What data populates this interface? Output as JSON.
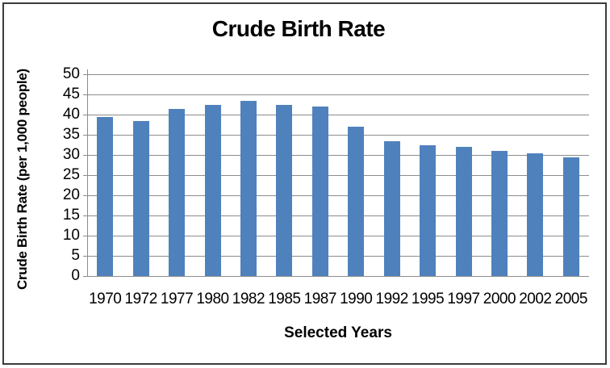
{
  "window": {
    "background_color": "#FFFFFF",
    "border_color": "#3C3C3C"
  },
  "chart_data": {
    "type": "bar",
    "title": "Crude Birth Rate",
    "xlabel": "Selected Years",
    "ylabel": "Crude Birth Rate (per 1,000 people)",
    "categories": [
      "1970",
      "1972",
      "1977",
      "1980",
      "1982",
      "1985",
      "1987",
      "1990",
      "1992",
      "1995",
      "1997",
      "2000",
      "2002",
      "2005"
    ],
    "values": [
      39.5,
      38.5,
      41.5,
      42.5,
      43.5,
      42.5,
      42,
      37,
      33.5,
      32.5,
      32,
      31,
      30.5,
      29.5
    ],
    "ylim": [
      0,
      50
    ],
    "yticks": [
      0,
      5,
      10,
      15,
      20,
      25,
      30,
      35,
      40,
      45,
      50
    ],
    "grid": "horizontal",
    "legend": "none",
    "bar_color": "#4F81BD",
    "gridline_color": "#8C8C8C",
    "axis_color": "#8C8C8C",
    "text_color": "#000000"
  }
}
